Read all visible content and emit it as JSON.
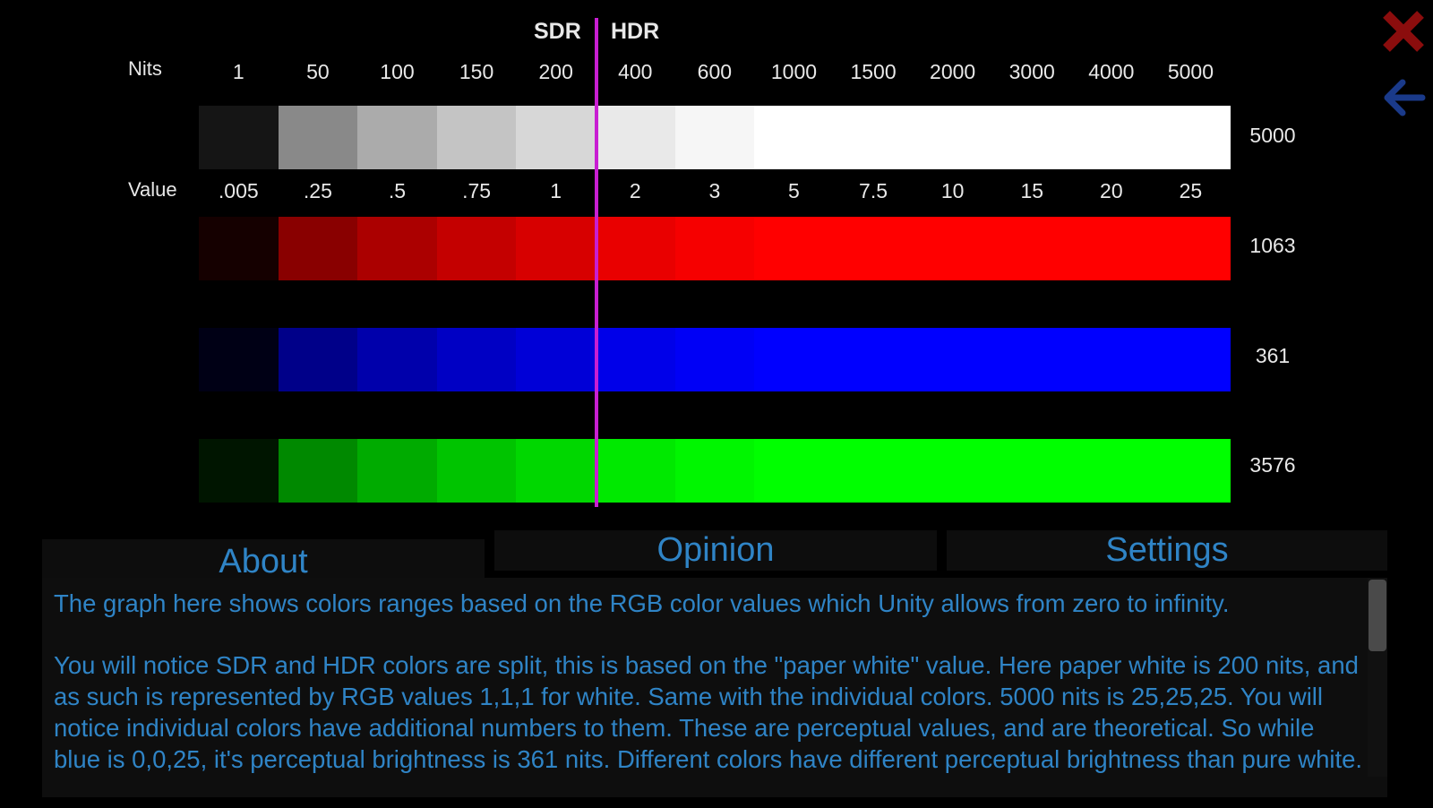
{
  "header": {
    "sdr": "SDR",
    "hdr": "HDR",
    "nits_label": "Nits",
    "value_label": "Value"
  },
  "nits_ticks": [
    "1",
    "50",
    "100",
    "150",
    "200",
    "400",
    "600",
    "1000",
    "1500",
    "2000",
    "3000",
    "4000",
    "5000"
  ],
  "value_ticks": [
    ".005",
    ".25",
    ".5",
    ".75",
    "1",
    "2",
    "3",
    "5",
    "7.5",
    "10",
    "15",
    "20",
    "25"
  ],
  "strips": [
    {
      "name": "white",
      "perceptual": "5000",
      "colors": [
        "#151515",
        "#898989",
        "#ababab",
        "#c4c4c4",
        "#d7d7d7",
        "#e9e9e9",
        "#f6f6f6",
        "#ffffff",
        "#ffffff",
        "#ffffff",
        "#ffffff",
        "#ffffff",
        "#ffffff"
      ]
    },
    {
      "name": "red",
      "perceptual": "1063",
      "colors": [
        "#150000",
        "#890000",
        "#ab0000",
        "#c40000",
        "#d70000",
        "#e90000",
        "#f60000",
        "#ff0000",
        "#ff0000",
        "#ff0000",
        "#ff0000",
        "#ff0000",
        "#ff0000"
      ]
    },
    {
      "name": "blue",
      "perceptual": "361",
      "colors": [
        "#000015",
        "#000089",
        "#0000ab",
        "#0000c4",
        "#0000d7",
        "#0000e9",
        "#0000f6",
        "#0000ff",
        "#0000ff",
        "#0000ff",
        "#0000ff",
        "#0000ff",
        "#0000ff"
      ]
    },
    {
      "name": "green",
      "perceptual": "3576",
      "colors": [
        "#001500",
        "#008900",
        "#00ab00",
        "#00c400",
        "#00d700",
        "#00e900",
        "#00f600",
        "#00ff00",
        "#00ff00",
        "#00ff00",
        "#00ff00",
        "#00ff00",
        "#00ff00"
      ]
    }
  ],
  "tabs": {
    "about": "About",
    "opinion": "Opinion",
    "settings": "Settings"
  },
  "about_text": "The graph here shows colors ranges based on the RGB color values which Unity allows from zero to infinity.\n\nYou will notice SDR and HDR colors are split, this is based on the \"paper white\" value. Here paper white is 200 nits, and as such is represented by RGB values 1,1,1 for white. Same with the individual colors. 5000 nits is 25,25,25. You will notice individual colors have additional numbers to them. These are perceptual values, and are theoretical. So while blue is 0,0,25, it's perceptual brightness is 361 nits. Different colors have different perceptual brightness than pure white.",
  "colors": {
    "accent_text": "#2f84c6",
    "divider": "#c81ed2",
    "close_icon": "#8b0d0d",
    "back_icon": "#1a3a8a"
  }
}
